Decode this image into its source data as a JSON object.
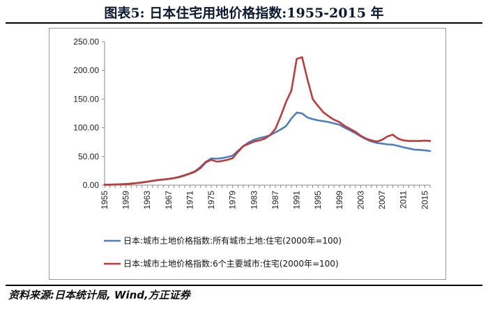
{
  "figure": {
    "title": "图表5:   日本住宅用地价格指数:1955-2015 年",
    "source": "资料来源:日本统计局, Wind,方正证券"
  },
  "colors": {
    "series_blue": "#4a7fc1",
    "series_red": "#c0393b"
  },
  "chart_data": {
    "type": "line",
    "title": "",
    "xlabel": "",
    "ylabel": "",
    "ylim": [
      0,
      250
    ],
    "xlim": [
      1955,
      2015
    ],
    "yticks": [
      "0.00",
      "50.00",
      "100.00",
      "150.00",
      "200.00",
      "250.00"
    ],
    "xticks": [
      "1955",
      "1959",
      "1963",
      "1967",
      "1971",
      "1975",
      "1979",
      "1983",
      "1987",
      "1991",
      "1995",
      "1999",
      "2003",
      "2007",
      "2011",
      "2015"
    ],
    "grid": false,
    "legend": "bottom",
    "series": [
      {
        "name": "日本:城市土地价格指数:所有城市土地:住宅(2000年=100)",
        "color": "#4a7fc1",
        "x": [
          1955,
          1956,
          1957,
          1958,
          1959,
          1960,
          1961,
          1962,
          1963,
          1964,
          1965,
          1966,
          1967,
          1968,
          1969,
          1970,
          1971,
          1972,
          1973,
          1974,
          1975,
          1976,
          1977,
          1978,
          1979,
          1980,
          1981,
          1982,
          1983,
          1984,
          1985,
          1986,
          1987,
          1988,
          1989,
          1990,
          1991,
          1992,
          1993,
          1994,
          1995,
          1996,
          1997,
          1998,
          1999,
          2000,
          2001,
          2002,
          2003,
          2004,
          2005,
          2006,
          2007,
          2008,
          2009,
          2010,
          2011,
          2012,
          2013,
          2014,
          2015,
          2016
        ],
        "values": [
          0.8,
          1.0,
          1.3,
          1.6,
          2.1,
          2.8,
          3.7,
          4.8,
          6.0,
          7.3,
          8.6,
          9.7,
          10.8,
          12.3,
          14.6,
          17.5,
          20.6,
          24.5,
          32.0,
          41.0,
          46.5,
          46.0,
          47.0,
          49.0,
          51.5,
          60.0,
          68.0,
          74.5,
          79.0,
          82.0,
          84.0,
          87.0,
          92.0,
          97.0,
          103.0,
          116.0,
          126.5,
          125.0,
          118.0,
          115.0,
          113.0,
          111.5,
          110.0,
          107.5,
          105.5,
          100.0,
          95.5,
          90.5,
          85.0,
          80.0,
          76.0,
          73.5,
          72.5,
          71.0,
          70.5,
          68.5,
          66.0,
          64.0,
          62.0,
          61.5,
          60.5,
          59.5
        ]
      },
      {
        "name": "日本:城市土地价格指数:6个主要城市:住宅(2000年=100)",
        "color": "#c0393b",
        "x": [
          1955,
          1956,
          1957,
          1958,
          1959,
          1960,
          1961,
          1962,
          1963,
          1964,
          1965,
          1966,
          1967,
          1968,
          1969,
          1970,
          1971,
          1972,
          1973,
          1974,
          1975,
          1976,
          1977,
          1978,
          1979,
          1980,
          1981,
          1982,
          1983,
          1984,
          1985,
          1986,
          1987,
          1988,
          1989,
          1990,
          1991,
          1992,
          1993,
          1994,
          1995,
          1996,
          1997,
          1998,
          1999,
          2000,
          2001,
          2002,
          2003,
          2004,
          2005,
          2006,
          2007,
          2008,
          2009,
          2010,
          2011,
          2012,
          2013,
          2014,
          2015,
          2016
        ],
        "values": [
          0.5,
          0.7,
          1.0,
          1.3,
          1.8,
          2.5,
          3.4,
          4.5,
          6.0,
          7.5,
          8.8,
          9.8,
          10.8,
          12.0,
          14.0,
          16.8,
          20.0,
          23.5,
          30.0,
          40.0,
          44.0,
          41.0,
          42.0,
          44.0,
          47.0,
          58.0,
          68.0,
          72.0,
          76.0,
          78.0,
          81.0,
          87.0,
          98.0,
          120.0,
          145.0,
          165.0,
          220.0,
          223.0,
          185.0,
          150.0,
          138.0,
          127.0,
          120.0,
          114.0,
          110.0,
          103.0,
          98.0,
          93.0,
          86.0,
          81.0,
          78.0,
          76.0,
          79.0,
          85.0,
          88.0,
          81.0,
          78.0,
          77.0,
          77.0,
          77.0,
          77.5,
          77.0
        ]
      }
    ]
  }
}
